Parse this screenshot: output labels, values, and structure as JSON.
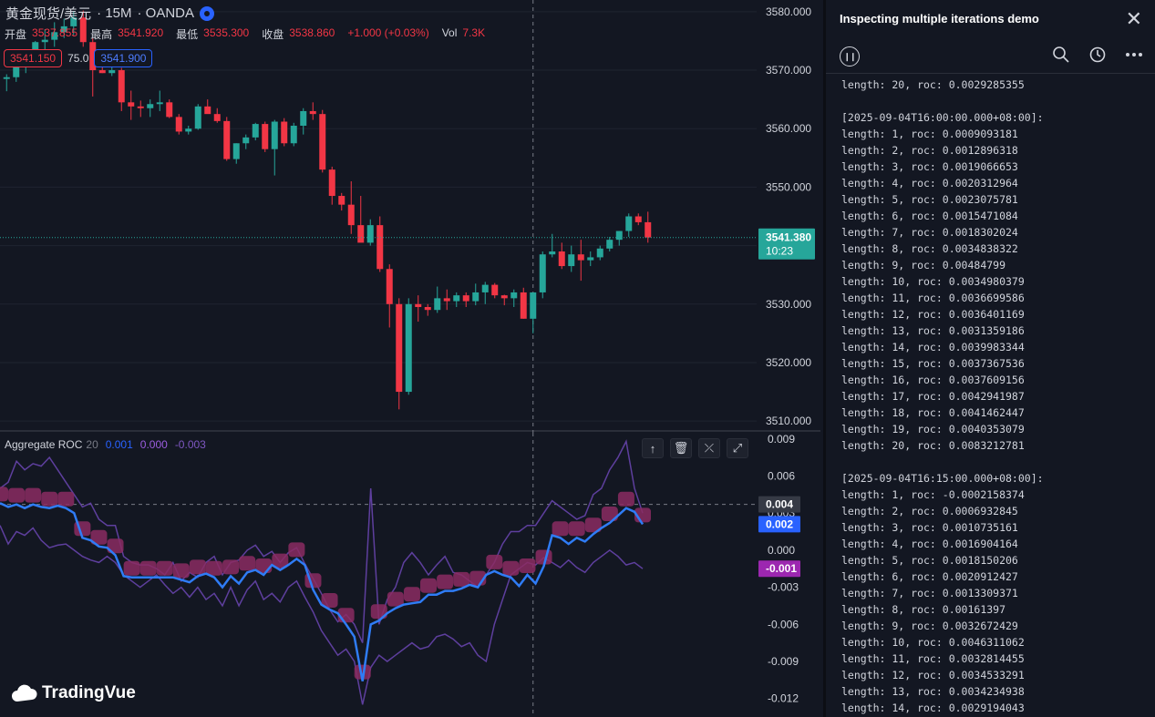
{
  "header": {
    "symbol": "黄金现货/美元",
    "interval": "· 15M",
    "exchange": "· OANDA",
    "open_label": "开盘",
    "open": "3537.855",
    "high_label": "最高",
    "high": "3541.920",
    "low_label": "最低",
    "low": "3535.300",
    "close_label": "收盘",
    "close": "3538.860",
    "change": "+1.000 (+0.03%)",
    "vol_label": "Vol",
    "vol": "7.3K",
    "sell": "3541.150",
    "spread": "75.0",
    "buy": "3541.900"
  },
  "price_axis": {
    "ticks": [
      "3580.000",
      "3570.000",
      "3560.000",
      "3550.000",
      "3540.000",
      "3530.000",
      "3520.000",
      "3510.000"
    ],
    "last_price": "3541.380",
    "countdown": "10:23"
  },
  "roc_panel": {
    "name": "Aggregate ROC",
    "length": "20",
    "v1": "0.001",
    "v2": "0.000",
    "v3": "-0.003",
    "ticks": [
      "0.009",
      "0.006",
      "0.003",
      "0.000",
      "-0.003",
      "-0.006",
      "-0.009",
      "-0.012"
    ],
    "badge_gray": "0.004",
    "badge_blue": "0.002",
    "badge_purple": "-0.001"
  },
  "tools": {
    "up": "↑",
    "delete": "🗑",
    "collapse": "⤫",
    "expand": "⤢"
  },
  "logo": {
    "text": "TradingVue"
  },
  "panel": {
    "title": "Inspecting multiple iterations demo",
    "log": "length: 20, roc: 0.0029285355\n\n[2025-09-04T16:00:00.000+08:00]:\nlength: 1, roc: 0.0009093181\nlength: 2, roc: 0.0012896318\nlength: 3, roc: 0.0019066653\nlength: 4, roc: 0.0020312964\nlength: 5, roc: 0.0023075781\nlength: 6, roc: 0.0015471084\nlength: 7, roc: 0.0018302024\nlength: 8, roc: 0.0034838322\nlength: 9, roc: 0.00484799\nlength: 10, roc: 0.0034980379\nlength: 11, roc: 0.0036699586\nlength: 12, roc: 0.0036401169\nlength: 13, roc: 0.0031359186\nlength: 14, roc: 0.0039983344\nlength: 15, roc: 0.0037367536\nlength: 16, roc: 0.0037609156\nlength: 17, roc: 0.0042941987\nlength: 18, roc: 0.0041462447\nlength: 19, roc: 0.0040353079\nlength: 20, roc: 0.0083212781\n\n[2025-09-04T16:15:00.000+08:00]:\nlength: 1, roc: -0.0002158374\nlength: 2, roc: 0.0006932845\nlength: 3, roc: 0.0010735161\nlength: 4, roc: 0.0016904164\nlength: 5, roc: 0.0018150206\nlength: 6, roc: 0.0020912427\nlength: 7, roc: 0.0013309371\nlength: 8, roc: 0.00161397\nlength: 9, roc: 0.0032672429\nlength: 10, roc: 0.0046311062\nlength: 11, roc: 0.0032814455\nlength: 12, roc: 0.0034533291\nlength: 13, roc: 0.0034234938\nlength: 14, roc: 0.0029194043"
  },
  "colors": {
    "up": "#26a69a",
    "down": "#f23645",
    "blue_line": "#2f7cf6",
    "purple_line": "#5e3f9e",
    "marker": "#8b2c62",
    "last_price": "#26a69a"
  },
  "chart_data": [
    {
      "type": "candlestick",
      "title": "黄金现货/美元 · 15M · OANDA",
      "ylim": [
        3508,
        3582
      ],
      "candles": [
        [
          3568.5,
          3569.3,
          3566.4,
          3568.8
        ],
        [
          3568.8,
          3572.5,
          3568.0,
          3571.2
        ],
        [
          3571.2,
          3573.0,
          3569.5,
          3572.3
        ],
        [
          3572.3,
          3575.0,
          3571.0,
          3574.8
        ],
        [
          3574.8,
          3577.0,
          3573.5,
          3575.2
        ],
        [
          3575.2,
          3578.2,
          3574.0,
          3576.5
        ],
        [
          3576.5,
          3578.8,
          3575.5,
          3577.5
        ],
        [
          3577.5,
          3580.0,
          3576.0,
          3579.0
        ],
        [
          3579.0,
          3580.2,
          3574.0,
          3574.8
        ],
        [
          3574.8,
          3575.5,
          3565.5,
          3570.0
        ],
        [
          3570.0,
          3571.0,
          3569.5,
          3569.5
        ],
        [
          3569.5,
          3570.5,
          3569.0,
          3570.0
        ],
        [
          3570.0,
          3570.4,
          3563.0,
          3564.5
        ],
        [
          3564.5,
          3566.5,
          3561.5,
          3563.8
        ],
        [
          3563.8,
          3564.8,
          3562.0,
          3563.5
        ],
        [
          3563.5,
          3565.0,
          3562.0,
          3564.2
        ],
        [
          3564.2,
          3566.5,
          3563.0,
          3564.5
        ],
        [
          3564.5,
          3565.0,
          3561.8,
          3562.0
        ],
        [
          3562.0,
          3562.5,
          3559.0,
          3559.5
        ],
        [
          3559.5,
          3560.5,
          3559.0,
          3560.0
        ],
        [
          3560.0,
          3564.2,
          3559.8,
          3563.8
        ],
        [
          3563.8,
          3565.0,
          3562.8,
          3562.5
        ],
        [
          3562.5,
          3563.5,
          3561.0,
          3561.3
        ],
        [
          3561.3,
          3562.0,
          3554.5,
          3554.8
        ],
        [
          3554.8,
          3557.5,
          3554.0,
          3557.5
        ],
        [
          3557.5,
          3559.0,
          3556.5,
          3558.5
        ],
        [
          3558.5,
          3561.0,
          3558.0,
          3560.8
        ],
        [
          3560.8,
          3561.2,
          3556.0,
          3556.5
        ],
        [
          3556.5,
          3561.5,
          3552.0,
          3561.2
        ],
        [
          3561.2,
          3561.8,
          3557.0,
          3557.5
        ],
        [
          3557.5,
          3561.0,
          3557.0,
          3560.5
        ],
        [
          3560.5,
          3563.5,
          3559.0,
          3563.0
        ],
        [
          3563.0,
          3564.5,
          3561.5,
          3562.5
        ],
        [
          3562.5,
          3563.2,
          3552.5,
          3553.0
        ],
        [
          3553.0,
          3553.5,
          3547.0,
          3548.5
        ],
        [
          3548.5,
          3549.0,
          3546.0,
          3547.0
        ],
        [
          3547.0,
          3551.0,
          3542.0,
          3543.5
        ],
        [
          3543.5,
          3548.5,
          3541.0,
          3540.5
        ],
        [
          3540.5,
          3544.5,
          3540.0,
          3543.5
        ],
        [
          3543.5,
          3545.0,
          3535.5,
          3536.0
        ],
        [
          3536.0,
          3536.8,
          3526.0,
          3530.0
        ],
        [
          3530.0,
          3531.0,
          3512.0,
          3515.0
        ],
        [
          3515.0,
          3531.0,
          3514.5,
          3530.0
        ],
        [
          3530.0,
          3531.5,
          3527.0,
          3529.5
        ],
        [
          3529.5,
          3530.0,
          3528.0,
          3529.0
        ],
        [
          3529.0,
          3533.0,
          3528.5,
          3531.0
        ],
        [
          3531.0,
          3532.5,
          3529.0,
          3530.5
        ],
        [
          3530.5,
          3532.0,
          3529.5,
          3531.5
        ],
        [
          3531.5,
          3532.0,
          3529.5,
          3530.5
        ],
        [
          3530.5,
          3533.5,
          3529.8,
          3532.0
        ],
        [
          3532.0,
          3533.8,
          3530.0,
          3533.3
        ],
        [
          3533.3,
          3533.6,
          3531.0,
          3531.5
        ],
        [
          3531.5,
          3531.6,
          3529.8,
          3531.0
        ],
        [
          3531.0,
          3532.5,
          3529.5,
          3532.0
        ],
        [
          3532.0,
          3532.8,
          3527.5,
          3527.5
        ],
        [
          3527.5,
          3532.0,
          3525.0,
          3532.0
        ],
        [
          3532.0,
          3539.0,
          3531.0,
          3538.5
        ],
        [
          3538.5,
          3542.0,
          3538.0,
          3539.0
        ],
        [
          3539.0,
          3540.5,
          3536.0,
          3536.5
        ],
        [
          3536.5,
          3540.0,
          3535.5,
          3538.5
        ],
        [
          3538.5,
          3541.0,
          3534.0,
          3537.5
        ],
        [
          3537.5,
          3539.0,
          3536.5,
          3538.0
        ],
        [
          3538.0,
          3540.0,
          3537.5,
          3539.5
        ],
        [
          3539.5,
          3541.5,
          3539.0,
          3541.0
        ],
        [
          3541.0,
          3542.5,
          3540.0,
          3542.5
        ],
        [
          3542.5,
          3545.5,
          3541.5,
          3545.0
        ],
        [
          3545.0,
          3545.5,
          3543.5,
          3544.0
        ],
        [
          3544.0,
          3545.8,
          3540.5,
          3541.4
        ]
      ],
      "last_price": 3541.38,
      "x_marker_index": 55
    },
    {
      "type": "line",
      "title": "Aggregate ROC 20",
      "ylim": [
        -0.0135,
        0.0095
      ],
      "series": [
        {
          "values": [
            0.0038,
            0.0035,
            0.0037,
            0.0034,
            0.0037,
            0.0035,
            0.0034,
            0.0036,
            0.0034,
            0.003,
            0.001,
            0.0008,
            0.0003,
            0.0002,
            -0.0004,
            -0.0021,
            -0.0022,
            -0.0022,
            -0.0022,
            -0.0022,
            -0.0022,
            -0.0022,
            -0.0024,
            -0.0026,
            -0.0021,
            -0.0019,
            -0.0022,
            -0.003,
            -0.0021,
            -0.0027,
            -0.0018,
            -0.0016,
            -0.002,
            -0.0012,
            -0.0016,
            -0.0012,
            -0.0007,
            -0.0012,
            -0.0032,
            -0.0044,
            -0.0048,
            -0.0051,
            -0.006,
            -0.007,
            -0.0106,
            -0.006,
            -0.0057,
            -0.0051,
            -0.0047,
            -0.0044,
            -0.0043,
            -0.0042,
            -0.0036,
            -0.0036,
            -0.0033,
            -0.0033,
            -0.0031,
            -0.0028,
            -0.003,
            -0.002,
            -0.0017,
            -0.002,
            -0.0022,
            -0.0029,
            -0.002,
            -0.0027,
            -0.0013,
            0.0012,
            0.001,
            0.0005,
            0.001,
            0.0007,
            0.0013,
            0.0018,
            0.0022,
            0.0028,
            0.0034,
            0.0031,
            0.0021
          ]
        },
        {
          "values": [
            0.005,
            0.0055,
            0.0072,
            0.0065,
            0.007,
            0.0068,
            0.0075,
            0.0065,
            0.0055,
            0.0045,
            0.0035,
            0.0038,
            0.0025,
            0.002,
            0.002,
            -0.0005,
            -0.001,
            -0.0012,
            -0.0012,
            -0.0015,
            -0.002,
            -0.001,
            -0.0025,
            -0.0018,
            -0.0022,
            -0.001,
            -0.0005,
            -0.002,
            -0.001,
            -0.0008,
            0.0,
            0.0004,
            -0.0005,
            -0.0001,
            -0.001,
            -0.0002,
            0.0002,
            -0.0011,
            -0.0023,
            -0.0035,
            -0.0048,
            -0.0058,
            -0.0052,
            -0.006,
            -0.0075,
            0.005,
            -0.006,
            -0.004,
            -0.003,
            -0.001,
            -0.0002,
            -0.001,
            -0.002,
            -0.0012,
            -0.0005,
            -0.0018,
            -0.002,
            -0.0025,
            -0.003,
            -0.002,
            -0.001,
            0.0005,
            0.0015,
            0.0015,
            0.002,
            0.002,
            0.003,
            0.004,
            0.0035,
            0.003,
            0.0025,
            0.0028,
            0.0045,
            0.005,
            0.0065,
            0.0075,
            0.0088,
            0.005,
            0.003
          ]
        },
        {
          "values": [
            0.002,
            0.0005,
            0.0015,
            0.0012,
            0.0018,
            0.0008,
            0.0002,
            0.0004,
            0.0005,
            0.0,
            -0.0005,
            -0.0008,
            -0.001,
            -0.0005,
            -0.001,
            -0.002,
            -0.0025,
            -0.003,
            -0.0025,
            -0.002,
            -0.0028,
            -0.0035,
            -0.003,
            -0.0038,
            -0.003,
            -0.004,
            -0.0035,
            -0.0045,
            -0.003,
            -0.0045,
            -0.0032,
            -0.0025,
            -0.004,
            -0.0035,
            -0.0042,
            -0.003,
            -0.0025,
            -0.0038,
            -0.005,
            -0.0065,
            -0.0075,
            -0.0085,
            -0.008,
            -0.009,
            -0.0125,
            -0.0095,
            -0.0085,
            -0.009,
            -0.0085,
            -0.008,
            -0.0075,
            -0.008,
            -0.0078,
            -0.007,
            -0.0068,
            -0.0072,
            -0.0078,
            -0.0075,
            -0.0085,
            -0.009,
            -0.006,
            -0.004,
            -0.002,
            -0.0015,
            -0.001,
            -0.0012,
            -0.0006,
            -0.001,
            -0.0014,
            -0.0008,
            -0.0014,
            -0.0018,
            -0.001,
            -0.0005,
            0.0,
            -0.0005,
            -0.0012,
            -0.001,
            -0.0015
          ]
        }
      ],
      "hline": 0.0037,
      "x_marker_index": 55
    }
  ]
}
